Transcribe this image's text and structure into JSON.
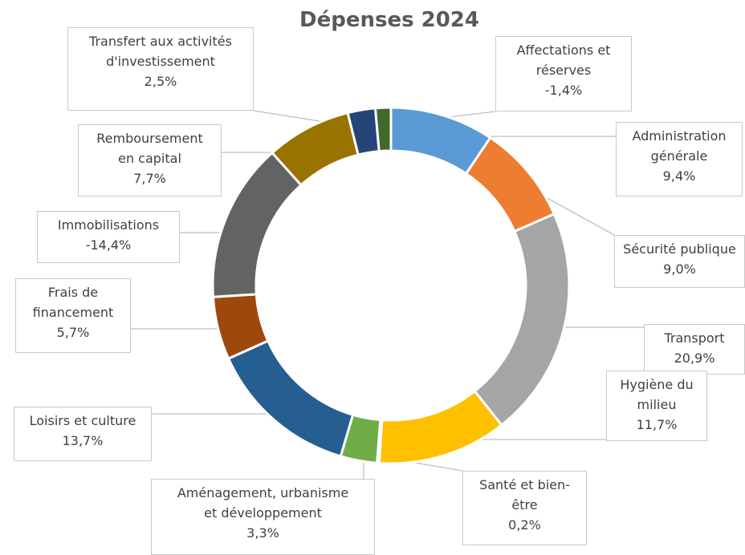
{
  "chart_data": {
    "type": "pie",
    "title": "Dépenses 2024",
    "donut": true,
    "slices": [
      {
        "label_lines": [
          "Administration",
          "générale"
        ],
        "value_text": "9,4%",
        "value": 9.4,
        "color": "#5b9bd5"
      },
      {
        "label_lines": [
          "Sécurité publique"
        ],
        "value_text": "9,0%",
        "value": 9.0,
        "color": "#ed7d31"
      },
      {
        "label_lines": [
          "Transport"
        ],
        "value_text": "20,9%",
        "value": 20.9,
        "color": "#a5a5a5"
      },
      {
        "label_lines": [
          "Hygiène du",
          "milieu"
        ],
        "value_text": "11,7%",
        "value": 11.7,
        "color": "#ffc000"
      },
      {
        "label_lines": [
          "Santé et bien-",
          "être"
        ],
        "value_text": "0,2%",
        "value": 0.2,
        "color": "#4472c4"
      },
      {
        "label_lines": [
          "Aménagement, urbanisme",
          "et développement"
        ],
        "value_text": "3,3%",
        "value": 3.3,
        "color": "#70ad47"
      },
      {
        "label_lines": [
          "Loisirs et culture"
        ],
        "value_text": "13,7%",
        "value": 13.7,
        "color": "#255e91"
      },
      {
        "label_lines": [
          "Frais de",
          "financement"
        ],
        "value_text": "5,7%",
        "value": 5.7,
        "color": "#9e480e"
      },
      {
        "label_lines": [
          "Immobilisations"
        ],
        "value_text": "-14,4%",
        "value": 14.4,
        "color": "#636363"
      },
      {
        "label_lines": [
          "Remboursement",
          "en capital"
        ],
        "value_text": "7,7%",
        "value": 7.7,
        "color": "#997300"
      },
      {
        "label_lines": [
          "Transfert aux activités",
          "d'investissement"
        ],
        "value_text": "2,5%",
        "value": 2.5,
        "color": "#264478"
      },
      {
        "label_lines": [
          "Affectations et",
          "réserves"
        ],
        "value_text": "-1,4%",
        "value": 1.4,
        "color": "#43682b"
      }
    ]
  }
}
